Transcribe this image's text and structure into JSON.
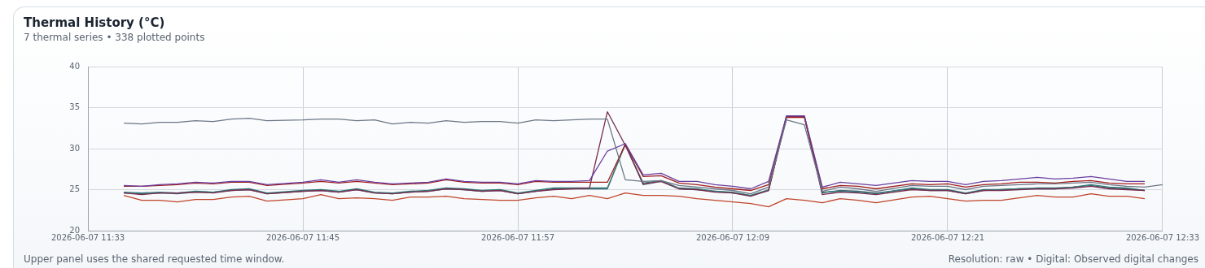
{
  "chart_data": {
    "type": "line",
    "title": "Thermal History (°C)",
    "subtitle": "7 thermal series • 338 plotted points",
    "annotations": [
      "Upper panel uses the shared requested time window.",
      "Resolution: raw • Digital: Observed digital changes"
    ],
    "x": [
      "2026-06-07T11:35",
      "2026-06-07T11:36",
      "2026-06-07T11:37",
      "2026-06-07T11:38",
      "2026-06-07T11:39",
      "2026-06-07T11:40",
      "2026-06-07T11:41",
      "2026-06-07T11:42",
      "2026-06-07T11:43",
      "2026-06-07T11:45",
      "2026-06-07T11:46",
      "2026-06-07T11:47",
      "2026-06-07T11:48",
      "2026-06-07T11:49",
      "2026-06-07T11:50",
      "2026-06-07T11:51",
      "2026-06-07T11:52",
      "2026-06-07T11:53",
      "2026-06-07T11:54",
      "2026-06-07T11:55",
      "2026-06-07T11:56",
      "2026-06-07T11:57",
      "2026-06-07T11:58",
      "2026-06-07T11:59",
      "2026-06-07T12:00",
      "2026-06-07T12:01",
      "2026-06-07T12:02",
      "2026-06-07T12:03",
      "2026-06-07T12:04",
      "2026-06-07T12:05",
      "2026-06-07T12:06",
      "2026-06-07T12:07",
      "2026-06-07T12:08",
      "2026-06-07T12:09",
      "2026-06-07T12:10",
      "2026-06-07T12:11",
      "2026-06-07T12:12",
      "2026-06-07T12:13",
      "2026-06-07T12:14",
      "2026-06-07T12:15",
      "2026-06-07T12:16",
      "2026-06-07T12:17",
      "2026-06-07T12:19",
      "2026-06-07T12:20",
      "2026-06-07T12:21",
      "2026-06-07T12:22",
      "2026-06-07T12:23",
      "2026-06-07T12:24",
      "2026-06-07T12:25",
      "2026-06-07T12:26",
      "2026-06-07T12:27",
      "2026-06-07T12:28",
      "2026-06-07T12:29",
      "2026-06-07T12:30",
      "2026-06-07T12:31",
      "2026-06-07T12:32"
    ],
    "series": [
      {
        "color": "#6b7785",
        "x": [
          "2026-06-07T11:35",
          "2026-06-07T11:36",
          "2026-06-07T11:37",
          "2026-06-07T11:38",
          "2026-06-07T11:39",
          "2026-06-07T11:40",
          "2026-06-07T11:41",
          "2026-06-07T11:42",
          "2026-06-07T11:43",
          "2026-06-07T11:45",
          "2026-06-07T11:46",
          "2026-06-07T11:47",
          "2026-06-07T11:48",
          "2026-06-07T11:49",
          "2026-06-07T11:50",
          "2026-06-07T11:51",
          "2026-06-07T11:52",
          "2026-06-07T11:53",
          "2026-06-07T11:54",
          "2026-06-07T11:55",
          "2026-06-07T11:56",
          "2026-06-07T11:57",
          "2026-06-07T11:58",
          "2026-06-07T11:59",
          "2026-06-07T12:00",
          "2026-06-07T12:01",
          "2026-06-07T12:02",
          "2026-06-07T12:03",
          "2026-06-07T12:04",
          "2026-06-07T12:05",
          "2026-06-07T12:06",
          "2026-06-07T12:07",
          "2026-06-07T12:08",
          "2026-06-07T12:09",
          "2026-06-07T12:10",
          "2026-06-07T12:11",
          "2026-06-07T12:12",
          "2026-06-07T12:13",
          "2026-06-07T12:14",
          "2026-06-07T12:15",
          "2026-06-07T12:16",
          "2026-06-07T12:17",
          "2026-06-07T12:19",
          "2026-06-07T12:20",
          "2026-06-07T12:21",
          "2026-06-07T12:22",
          "2026-06-07T12:23",
          "2026-06-07T12:24",
          "2026-06-07T12:25",
          "2026-06-07T12:26",
          "2026-06-07T12:27",
          "2026-06-07T12:28",
          "2026-06-07T12:29",
          "2026-06-07T12:30",
          "2026-06-07T12:31",
          "2026-06-07T12:32",
          "2026-06-07T12:33"
        ],
        "values": [
          33.1,
          33.0,
          33.2,
          33.2,
          33.4,
          33.3,
          33.6,
          33.7,
          33.4,
          33.5,
          33.6,
          33.6,
          33.4,
          33.5,
          33.0,
          33.2,
          33.1,
          33.4,
          33.2,
          33.3,
          33.3,
          33.1,
          33.5,
          33.4,
          33.5,
          33.6,
          33.6,
          26.2,
          26.0,
          26.1,
          25.5,
          25.3,
          25.1,
          24.9,
          24.5,
          25.3,
          33.5,
          32.9,
          24.8,
          25.3,
          25.1,
          24.8,
          25.5,
          25.4,
          25.4,
          25.0,
          25.4,
          25.5,
          25.6,
          25.7,
          25.7,
          25.8,
          25.9,
          25.6,
          25.4,
          25.3,
          25.6
        ]
      },
      {
        "color": "#6a3fa0",
        "values": [
          25.5,
          25.4,
          25.6,
          25.7,
          25.9,
          25.8,
          26.0,
          26.0,
          25.6,
          25.9,
          26.2,
          25.9,
          26.2,
          25.9,
          25.7,
          25.8,
          25.9,
          26.3,
          26.0,
          25.9,
          25.9,
          25.7,
          26.1,
          26.0,
          26.0,
          26.1,
          29.7,
          30.6,
          26.8,
          27.0,
          26.0,
          26.0,
          25.6,
          25.4,
          25.1,
          26.0,
          34.0,
          34.0,
          25.3,
          25.9,
          25.7,
          25.5,
          26.1,
          26.0,
          26.0,
          25.6,
          26.0,
          26.1,
          26.3,
          26.5,
          26.3,
          26.4,
          26.6,
          26.3,
          26.0,
          26.0
        ]
      },
      {
        "color": "#a01c1c",
        "values": [
          25.4,
          25.4,
          25.5,
          25.6,
          25.8,
          25.7,
          25.9,
          25.9,
          25.5,
          25.8,
          26.0,
          25.8,
          26.0,
          25.8,
          25.6,
          25.7,
          25.8,
          26.2,
          25.9,
          25.8,
          25.8,
          25.6,
          26.0,
          25.9,
          25.9,
          25.9,
          25.9,
          30.5,
          26.6,
          26.7,
          25.8,
          25.6,
          25.3,
          25.1,
          24.9,
          25.6,
          33.8,
          33.8,
          25.1,
          25.5,
          25.4,
          25.1,
          25.7,
          25.6,
          25.7,
          25.3,
          25.6,
          25.7,
          25.9,
          25.9,
          25.8,
          26.0,
          26.1,
          25.8,
          25.7,
          25.7
        ]
      },
      {
        "color": "#7a2d4f",
        "values": [
          24.6,
          24.4,
          24.6,
          24.6,
          24.7,
          24.6,
          24.9,
          25.0,
          24.5,
          24.8,
          24.9,
          24.7,
          25.0,
          24.6,
          24.5,
          24.7,
          24.8,
          25.1,
          25.0,
          24.8,
          24.9,
          24.5,
          24.8,
          25.0,
          25.1,
          25.2,
          34.5,
          30.4,
          25.7,
          26.0,
          25.1,
          25.0,
          24.7,
          24.6,
          24.2,
          24.9,
          33.9,
          33.9,
          24.4,
          24.7,
          24.6,
          24.4,
          25.0,
          24.9,
          24.9,
          24.5,
          24.9,
          24.9,
          25.0,
          25.1,
          25.1,
          25.2,
          25.4,
          25.1,
          25.0,
          24.9
        ]
      },
      {
        "color": "#2e7d7a",
        "values": [
          24.7,
          24.6,
          24.7,
          24.6,
          24.8,
          24.7,
          25.0,
          25.1,
          24.6,
          24.9,
          25.0,
          24.8,
          25.1,
          24.7,
          24.6,
          24.8,
          24.9,
          25.2,
          25.1,
          24.9,
          25.0,
          24.6,
          24.9,
          25.2,
          25.2,
          25.2,
          25.2,
          30.5,
          25.8,
          26.1,
          25.2,
          25.1,
          24.8,
          24.7,
          24.3,
          25.0,
          34.0,
          34.0,
          24.7,
          24.8,
          24.7,
          24.5,
          25.2,
          25.0,
          25.0,
          24.6,
          25.0,
          25.0,
          25.1,
          25.2,
          25.2,
          25.3,
          25.6,
          25.3,
          25.2,
          24.9
        ]
      },
      {
        "color": "#4a6272",
        "values": [
          24.6,
          24.5,
          24.6,
          24.5,
          24.7,
          24.7,
          24.9,
          25.0,
          24.5,
          24.8,
          24.9,
          24.7,
          25.0,
          24.6,
          24.5,
          24.7,
          24.8,
          25.1,
          25.0,
          24.8,
          24.9,
          24.5,
          24.8,
          25.1,
          25.1,
          25.1,
          25.1,
          30.6,
          25.6,
          26.0,
          25.1,
          25.0,
          24.8,
          24.6,
          24.3,
          24.9,
          33.9,
          33.9,
          24.6,
          24.9,
          24.8,
          24.6,
          25.1,
          24.9,
          24.9,
          24.5,
          24.9,
          25.0,
          25.1,
          25.1,
          25.1,
          25.3,
          25.5,
          25.2,
          25.1,
          24.9
        ]
      },
      {
        "color": "#c0442a",
        "values": [
          24.3,
          23.7,
          23.7,
          23.5,
          23.8,
          23.8,
          24.1,
          24.2,
          23.6,
          23.9,
          24.4,
          23.9,
          24.0,
          23.9,
          23.7,
          24.1,
          24.1,
          24.2,
          23.9,
          23.8,
          23.7,
          23.7,
          24.0,
          24.2,
          23.9,
          24.3,
          23.9,
          24.6,
          24.3,
          24.3,
          24.2,
          23.9,
          23.7,
          23.5,
          23.3,
          22.9,
          23.9,
          23.7,
          23.4,
          23.9,
          23.7,
          23.4,
          24.1,
          24.2,
          23.9,
          23.6,
          23.7,
          23.7,
          24.0,
          24.3,
          24.1,
          24.1,
          24.5,
          24.2,
          24.2,
          23.9
        ]
      }
    ],
    "xlim": [
      "2026-06-07T11:33",
      "2026-06-07T12:33"
    ],
    "xticks": [
      {
        "value": "2026-06-07T11:33",
        "label": "2026-06-07 11:33"
      },
      {
        "value": "2026-06-07T11:45",
        "label": "2026-06-07 11:45"
      },
      {
        "value": "2026-06-07T11:57",
        "label": "2026-06-07 11:57"
      },
      {
        "value": "2026-06-07T12:09",
        "label": "2026-06-07 12:09"
      },
      {
        "value": "2026-06-07T12:21",
        "label": "2026-06-07 12:21"
      },
      {
        "value": "2026-06-07T12:33",
        "label": "2026-06-07 12:33"
      }
    ],
    "ylim": [
      20,
      40
    ],
    "yticks": [
      20,
      25,
      30,
      35,
      40
    ],
    "grid": true,
    "marker": "none",
    "line_style": "solid"
  }
}
